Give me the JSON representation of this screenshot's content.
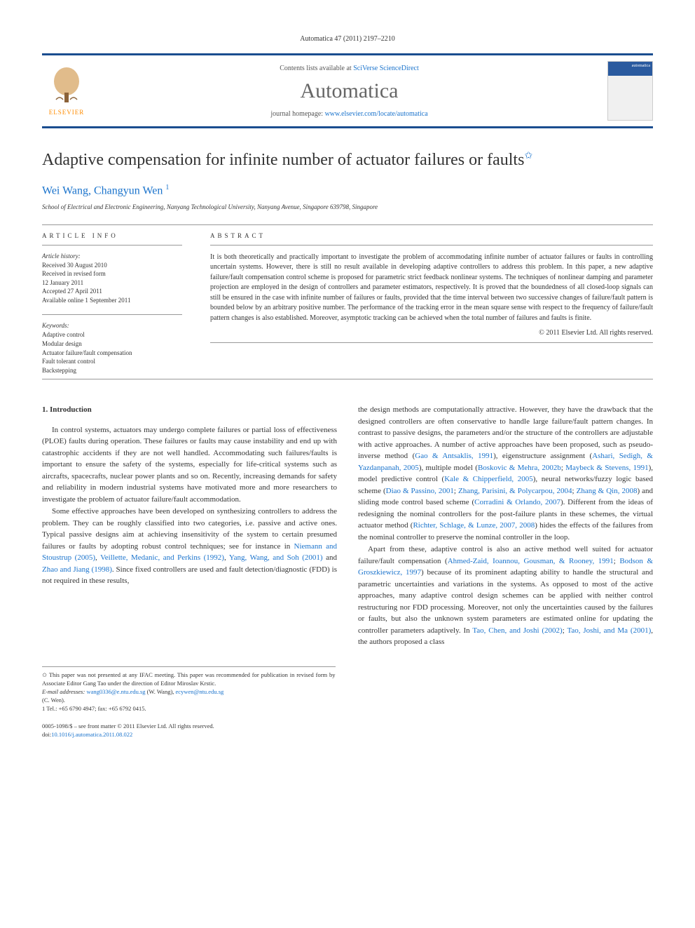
{
  "header": {
    "citation": "Automatica 47 (2011) 2197–2210"
  },
  "banner": {
    "elsevier_label": "ELSEVIER",
    "contents_prefix": "Contents lists available at ",
    "contents_link": "SciVerse ScienceDirect",
    "journal_name": "Automatica",
    "homepage_prefix": "journal homepage: ",
    "homepage_link": "www.elsevier.com/locate/automatica",
    "cover_label": "automatica"
  },
  "title": "Adaptive compensation for infinite number of actuator failures or faults",
  "title_marker": "✩",
  "authors": "Wei Wang, Changyun Wen",
  "author_sup": "1",
  "affiliation": "School of Electrical and Electronic Engineering, Nanyang Technological University, Nanyang Avenue, Singapore 639798, Singapore",
  "info": {
    "label": "ARTICLE INFO",
    "history_title": "Article history:",
    "history": [
      "Received 30 August 2010",
      "Received in revised form",
      "12 January 2011",
      "Accepted 27 April 2011",
      "Available online 1 September 2011"
    ],
    "keywords_title": "Keywords:",
    "keywords": [
      "Adaptive control",
      "Modular design",
      "Actuator failure/fault compensation",
      "Fault tolerant control",
      "Backstepping"
    ]
  },
  "abstract": {
    "label": "ABSTRACT",
    "text": "It is both theoretically and practically important to investigate the problem of accommodating infinite number of actuator failures or faults in controlling uncertain systems. However, there is still no result available in developing adaptive controllers to address this problem. In this paper, a new adaptive failure/fault compensation control scheme is proposed for parametric strict feedback nonlinear systems. The techniques of nonlinear damping and parameter projection are employed in the design of controllers and parameter estimators, respectively. It is proved that the boundedness of all closed-loop signals can still be ensured in the case with infinite number of failures or faults, provided that the time interval between two successive changes of failure/fault pattern is bounded below by an arbitrary positive number. The performance of the tracking error in the mean square sense with respect to the frequency of failure/fault pattern changes is also established. Moreover, asymptotic tracking can be achieved when the total number of failures and faults is finite.",
    "copyright": "© 2011 Elsevier Ltd. All rights reserved."
  },
  "body": {
    "section_heading": "1. Introduction",
    "left_paras": [
      "In control systems, actuators may undergo complete failures or partial loss of effectiveness (PLOE) faults during operation. These failures or faults may cause instability and end up with catastrophic accidents if they are not well handled. Accommodating such failures/faults is important to ensure the safety of the systems, especially for life-critical systems such as aircrafts, spacecrafts, nuclear power plants and so on. Recently, increasing demands for safety and reliability in modern industrial systems have motivated more and more researchers to investigate the problem of actuator failure/fault accommodation.",
      "Some effective approaches have been developed on synthesizing controllers to address the problem. They can be roughly classified into two categories, i.e. passive and active ones. Typical passive designs aim at achieving insensitivity of the system to certain presumed failures or faults by adopting robust control techniques; see for instance in <span class='ref'>Niemann and Stoustrup (2005)</span>, <span class='ref'>Veillette, Medanic, and Perkins (1992)</span>, <span class='ref'>Yang, Wang, and Soh (2001)</span> and <span class='ref'>Zhao and Jiang (1998)</span>. Since fixed controllers are used and fault detection/diagnostic (FDD) is not required in these results,"
    ],
    "right_paras": [
      "the design methods are computationally attractive. However, they have the drawback that the designed controllers are often conservative to handle large failure/fault pattern changes. In contrast to passive designs, the parameters and/or the structure of the controllers are adjustable with active approaches. A number of active approaches have been proposed, such as pseudo-inverse method (<span class='ref'>Gao & Antsaklis, 1991</span>), eigenstructure assignment (<span class='ref'>Ashari, Sedigh, & Yazdanpanah, 2005</span>), multiple model (<span class='ref'>Boskovic & Mehra, 2002b</span>; <span class='ref'>Maybeck & Stevens, 1991</span>), model predictive control (<span class='ref'>Kale & Chipperfield, 2005</span>), neural networks/fuzzy logic based scheme (<span class='ref'>Diao & Passino, 2001</span>; <span class='ref'>Zhang, Parisini, & Polycarpou, 2004</span>; <span class='ref'>Zhang & Qin, 2008</span>) and sliding mode control based scheme (<span class='ref'>Corradini & Orlando, 2007</span>). Different from the ideas of redesigning the nominal controllers for the post-failure plants in these schemes, the virtual actuator method (<span class='ref'>Richter, Schlage, & Lunze, 2007, 2008</span>) hides the effects of the failures from the nominal controller to preserve the nominal controller in the loop.",
      "Apart from these, adaptive control is also an active method well suited for actuator failure/fault compensation (<span class='ref'>Ahmed-Zaid, Ioannou, Gousman, & Rooney, 1991</span>; <span class='ref'>Bodson & Groszkiewicz, 1997</span>) because of its prominent adapting ability to handle the structural and parametric uncertainties and variations in the systems. As opposed to most of the active approaches, many adaptive control design schemes can be applied with neither control restructuring nor FDD processing. Moreover, not only the uncertainties caused by the failures or faults, but also the unknown system parameters are estimated online for updating the controller parameters adaptively. In <span class='ref'>Tao, Chen, and Joshi (2002)</span>; <span class='ref'>Tao, Joshi, and Ma (2001)</span>, the authors proposed a class"
    ]
  },
  "footnotes": {
    "star": "✩ This paper was not presented at any IFAC meeting. This paper was recommended for publication in revised form by Associate Editor Gang Tao under the direction of Editor Miroslav Krstic.",
    "email_label": "E-mail addresses:",
    "email1": "wang0336@e.ntu.edu.sg",
    "email1_name": "(W. Wang),",
    "email2": "ecywen@ntu.edu.sg",
    "email2_name": "(C. Wen).",
    "tel": "1 Tel.: +65 6790 4947; fax: +65 6792 0415."
  },
  "footer": {
    "line1": "0005-1098/$ – see front matter © 2011 Elsevier Ltd. All rights reserved.",
    "doi_prefix": "doi:",
    "doi": "10.1016/j.automatica.2011.08.022"
  },
  "colors": {
    "accent": "#1a4d8f",
    "link": "#1a73cc",
    "elsevier_orange": "#ff8c00",
    "text": "#333333",
    "journal_gray": "#666666"
  }
}
